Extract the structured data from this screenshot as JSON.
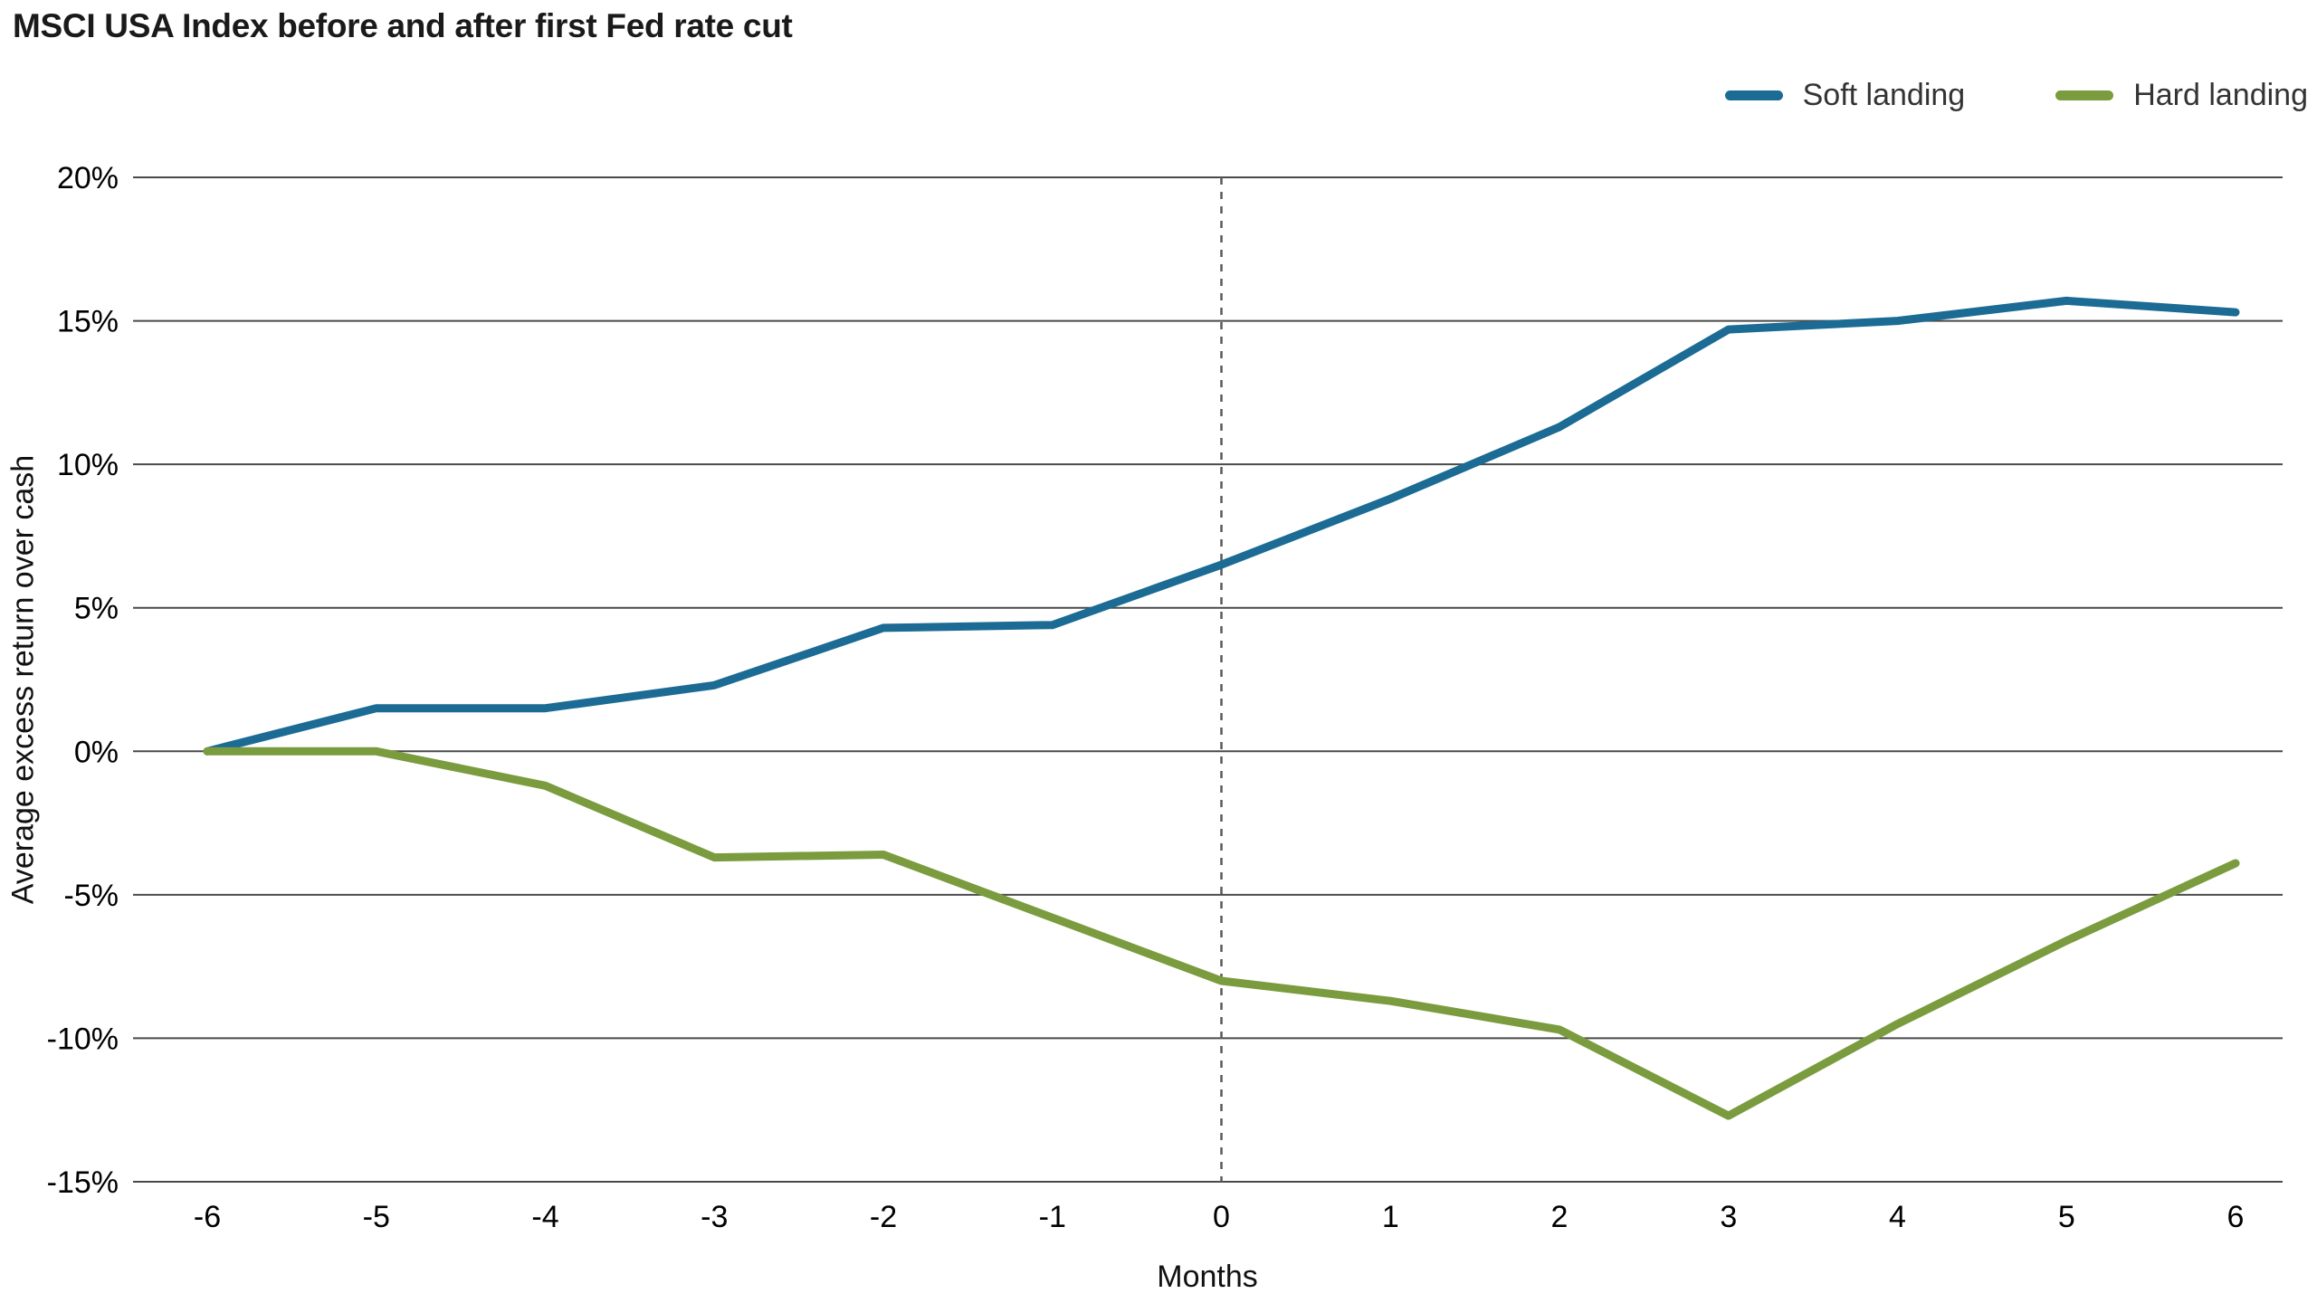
{
  "title": "MSCI USA Index before and after first Fed rate cut",
  "axis": {
    "ylabel": "Average excess return over cash",
    "xlabel": "Months"
  },
  "legend": {
    "items": [
      "Soft landing",
      "Hard landing"
    ]
  },
  "chart_data": {
    "type": "line",
    "title": "MSCI USA Index before and after first Fed rate cut",
    "xlabel": "Months",
    "ylabel": "Average excess return over cash",
    "x": [
      -6,
      -5,
      -4,
      -3,
      -2,
      -1,
      0,
      1,
      2,
      3,
      4,
      5,
      6
    ],
    "series": [
      {
        "name": "Soft landing",
        "color": "#1b6b94",
        "values": [
          0,
          1.5,
          1.5,
          2.3,
          4.3,
          4.4,
          6.5,
          8.8,
          11.3,
          14.7,
          15.0,
          15.7,
          15.3
        ]
      },
      {
        "name": "Hard landing",
        "color": "#7a9b3e",
        "values": [
          0,
          0,
          -1.2,
          -3.7,
          -3.6,
          -5.8,
          -8.0,
          -8.7,
          -9.7,
          -12.7,
          -9.5,
          -6.6,
          -3.9
        ]
      }
    ],
    "ylim": [
      -15,
      20
    ],
    "yticks": [
      20,
      15,
      10,
      5,
      0,
      -5,
      -10,
      -15
    ],
    "ytick_labels": [
      "20%",
      "15%",
      "10%",
      "5%",
      "0%",
      "-5%",
      "-10%",
      "-15%"
    ],
    "xticks": [
      -6,
      -5,
      -4,
      -3,
      -2,
      -1,
      0,
      1,
      2,
      3,
      4,
      5,
      6
    ],
    "grid": "horizontal",
    "gridline_color": "#4a4a4a",
    "vline_x": 0,
    "vline_style": "dashed",
    "vline_color": "#5a5a5a",
    "legend_position": "top-right"
  }
}
